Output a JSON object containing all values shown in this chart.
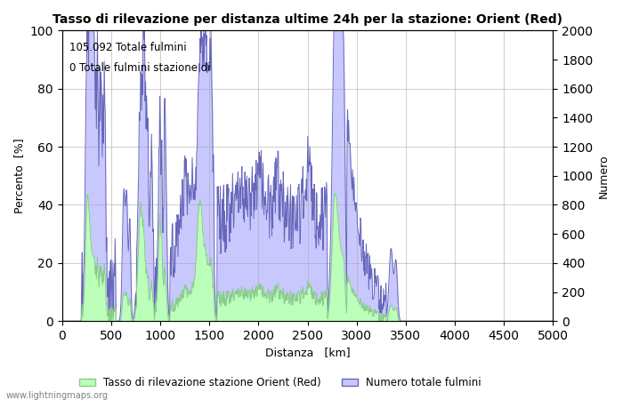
{
  "title": "Tasso di rilevazione per distanza ultime 24h per la stazione: Orient (Red)",
  "xlabel": "Distanza   [km]",
  "ylabel_left": "Percento  [%]",
  "ylabel_right": "Numero",
  "annotation_line1": "105.092 Totale fulmini",
  "annotation_line2": "0 Totale fulmini stazione di",
  "xlim": [
    0,
    5000
  ],
  "ylim_left": [
    0,
    100
  ],
  "ylim_right": [
    0,
    2000
  ],
  "xticks": [
    0,
    500,
    1000,
    1500,
    2000,
    2500,
    3000,
    3500,
    4000,
    4500,
    5000
  ],
  "yticks_left": [
    0,
    20,
    40,
    60,
    80,
    100
  ],
  "yticks_right": [
    0,
    200,
    400,
    600,
    800,
    1000,
    1200,
    1400,
    1600,
    1800,
    2000
  ],
  "legend_label_green": "Tasso di rilevazione stazione Orient (Red)",
  "legend_label_blue": "Numero totale fulmini",
  "watermark": "www.lightningmaps.org",
  "fill_color_blue": "#c8c8ff",
  "line_color_blue": "#6666bb",
  "fill_color_green": "#bbffbb",
  "line_color_green": "#88cc88",
  "background_color": "#ffffff",
  "grid_color": "#aaaaaa"
}
